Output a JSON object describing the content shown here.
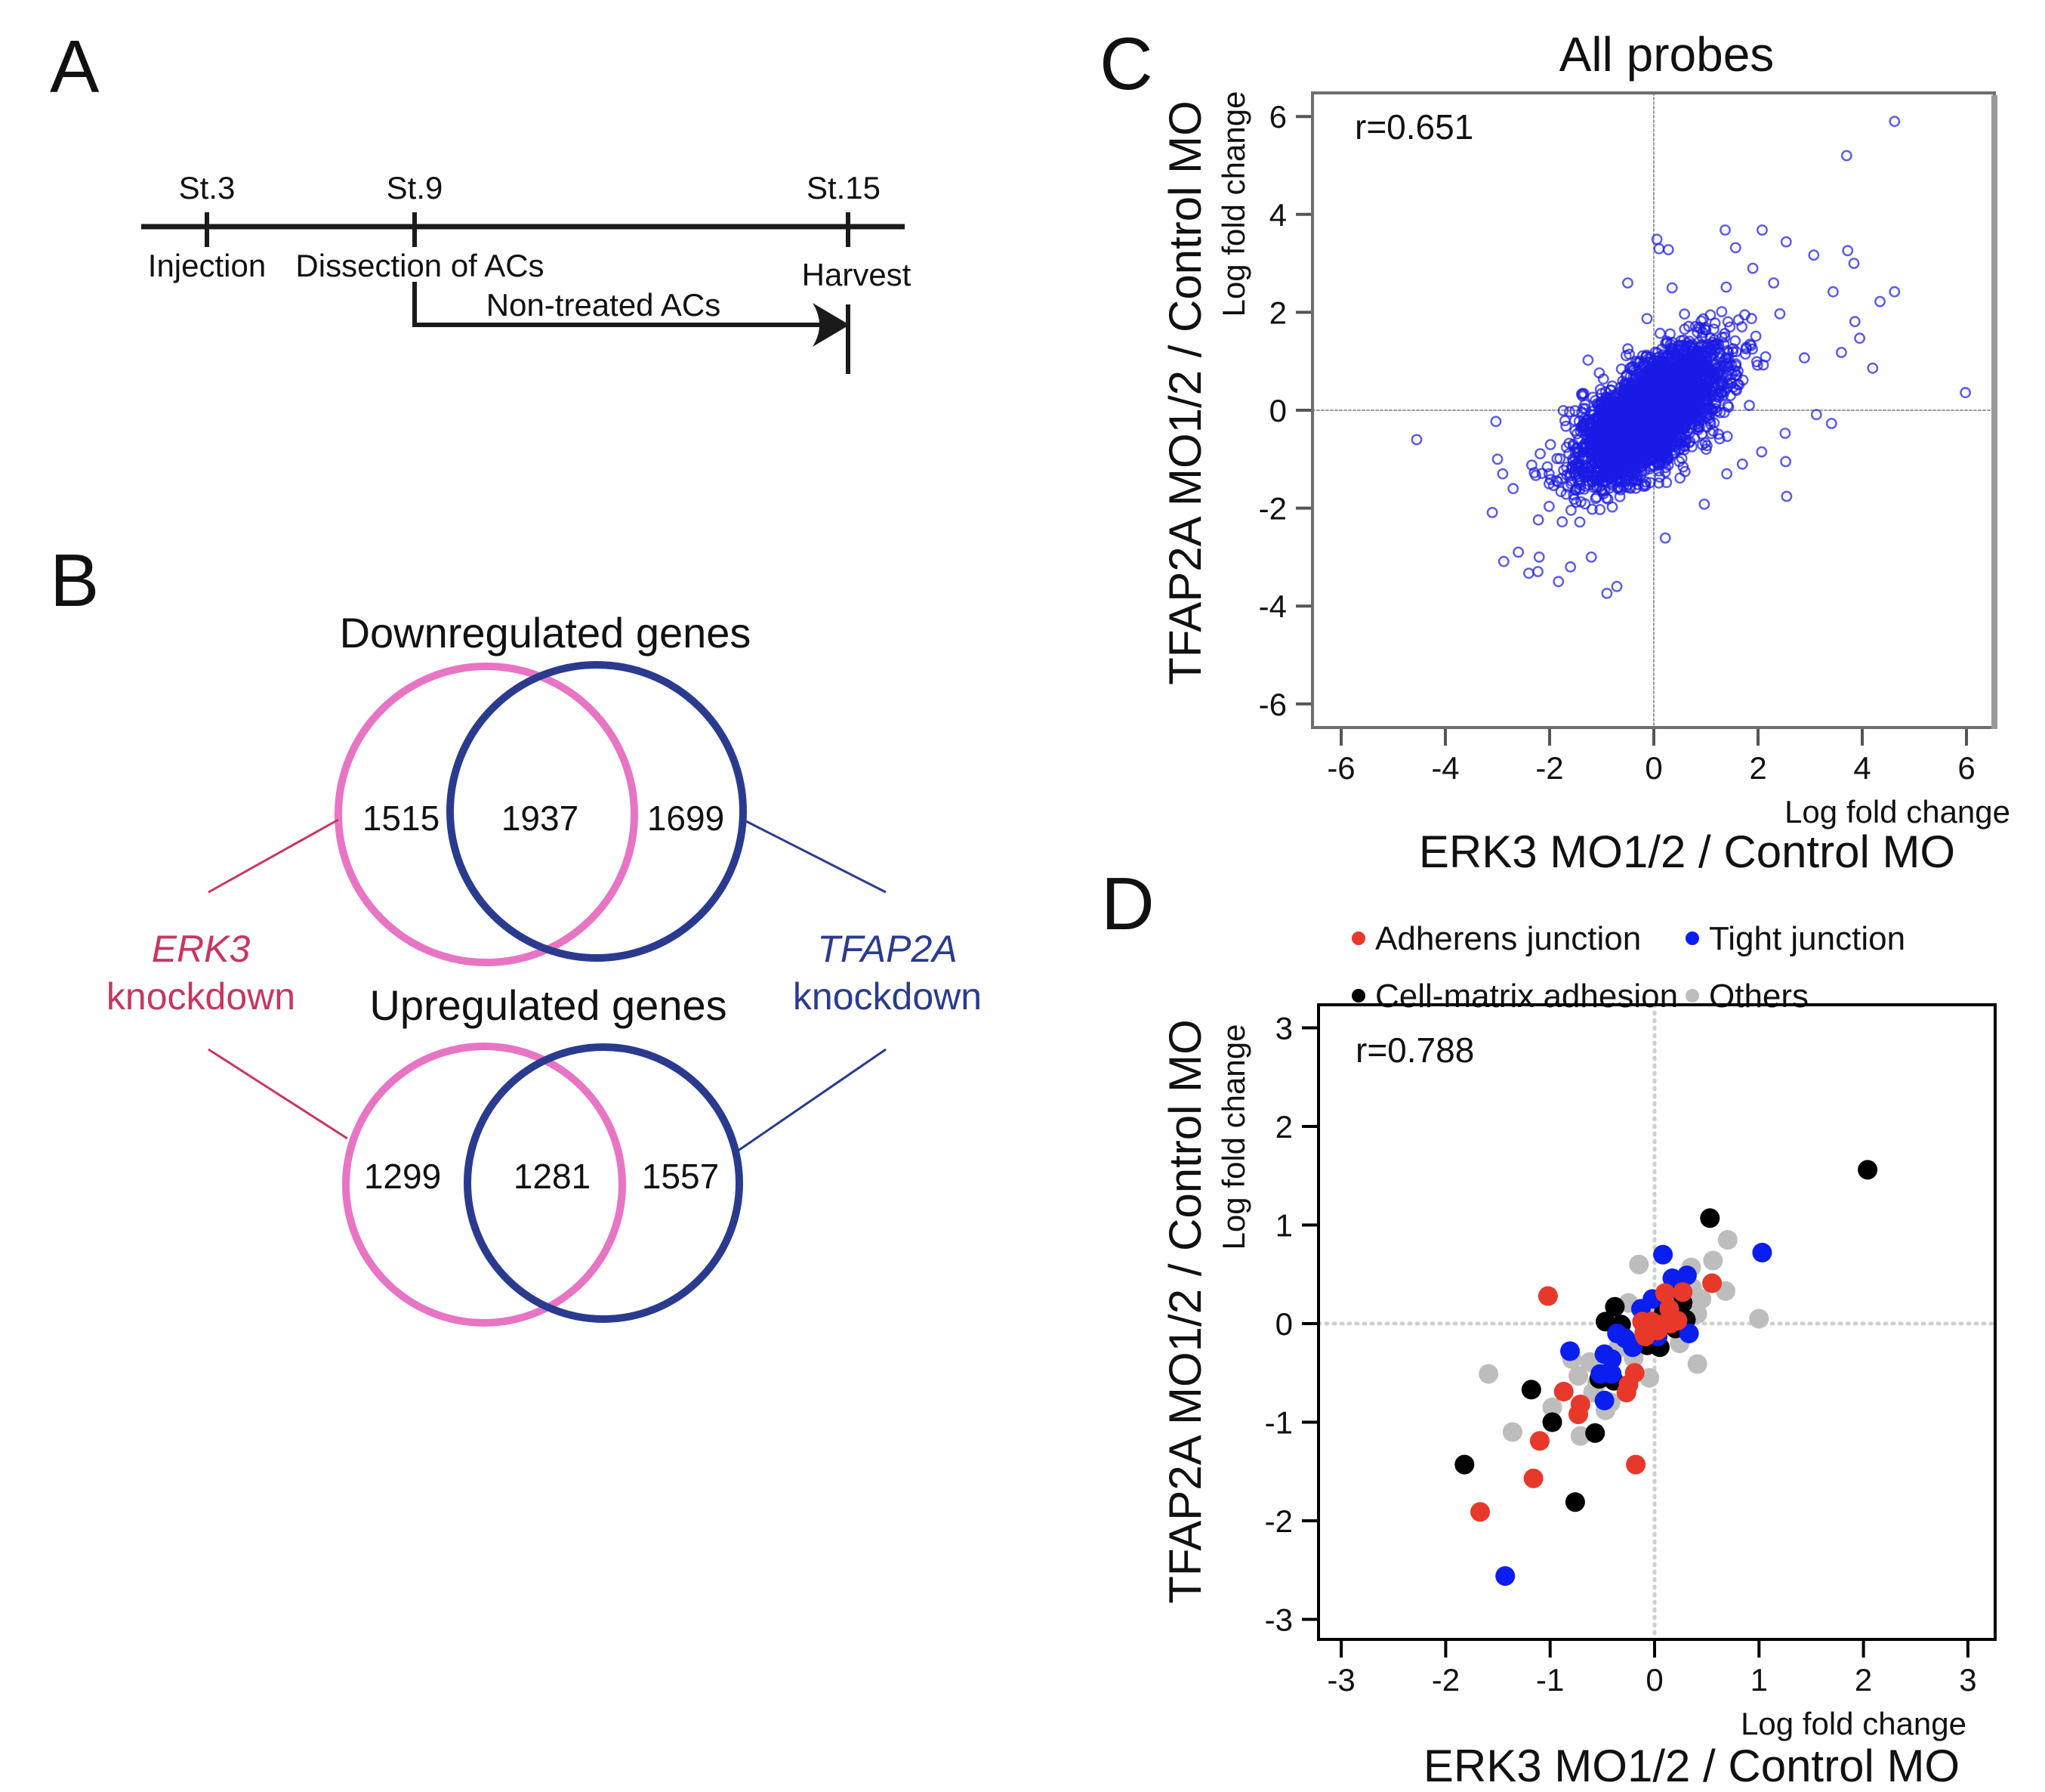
{
  "panel_labels": {
    "a": "A",
    "b": "B",
    "c": "C",
    "d": "D"
  },
  "timeline": {
    "stages": [
      {
        "label": "St.3",
        "event": "Injection"
      },
      {
        "label": "St.9",
        "event": "Dissection of ACs"
      },
      {
        "label": "St.15",
        "event": "Harvest"
      }
    ],
    "arrow_label": "Non-treated ACs"
  },
  "venn": {
    "colors": {
      "erk3": "#e874c4",
      "tfap2a": "#2a3b8f",
      "erk3_text": "#c8365f",
      "tfap2a_text": "#2a3b8f"
    },
    "down": {
      "title": "Downregulated genes",
      "erk3_only": "1515",
      "both": "1937",
      "tfap2a_only": "1699"
    },
    "up": {
      "title": "Upregulated genes",
      "erk3_only": "1299",
      "both": "1281",
      "tfap2a_only": "1557"
    },
    "erk3_label": {
      "gene": "ERK3",
      "word": "knockdown"
    },
    "tfap2a_label": {
      "gene": "TFAP2A",
      "word": "knockdown"
    }
  },
  "chart_data": [
    {
      "id": "C",
      "type": "scatter",
      "title": "All probes",
      "annotation": "r=0.651",
      "xlabel": "ERK3 MO1/2 / Control MO",
      "xlabel_small": "Log fold change",
      "ylabel": "TFAP2A MO1/2 / Control MO",
      "ylabel_small": "Log fold change",
      "xlim": [
        -6.5,
        6.5
      ],
      "ylim": [
        -6.5,
        6.5
      ],
      "xticks": [
        -6,
        -4,
        -2,
        0,
        2,
        4,
        6
      ],
      "yticks": [
        -6,
        -4,
        -2,
        0,
        2,
        4,
        6
      ],
      "reference_lines": {
        "x": 0,
        "y": 0
      },
      "marker": "open-circle",
      "color": "#1a1ae6",
      "bulk_distribution": {
        "n": 3500,
        "mean_x": -0.1,
        "mean_y": -0.1,
        "sd_x": 0.68,
        "sd_y": 0.68,
        "r": 0.651,
        "seed": 7
      },
      "outliers": [
        [
          4.62,
          5.9
        ],
        [
          3.7,
          5.2
        ],
        [
          5.98,
          0.36
        ],
        [
          -4.55,
          -0.6
        ],
        [
          1.37,
          3.68
        ],
        [
          2.08,
          3.68
        ],
        [
          2.54,
          3.44
        ],
        [
          1.57,
          3.32
        ],
        [
          3.72,
          3.26
        ],
        [
          3.84,
          3.0
        ],
        [
          3.07,
          3.17
        ],
        [
          3.44,
          2.42
        ],
        [
          4.62,
          2.42
        ],
        [
          4.34,
          2.22
        ],
        [
          3.86,
          1.81
        ],
        [
          3.95,
          1.47
        ],
        [
          3.6,
          1.18
        ],
        [
          4.2,
          0.86
        ],
        [
          2.89,
          1.07
        ],
        [
          3.41,
          -0.27
        ],
        [
          3.12,
          -0.09
        ],
        [
          2.52,
          -0.47
        ],
        [
          2.53,
          -1.05
        ],
        [
          2.55,
          -1.76
        ],
        [
          2.07,
          -0.85
        ],
        [
          0.97,
          -1.92
        ],
        [
          0.22,
          -2.61
        ],
        [
          -0.9,
          -3.74
        ],
        [
          -0.71,
          -3.6
        ],
        [
          -1.83,
          -3.5
        ],
        [
          -2.88,
          -3.09
        ],
        [
          -2.4,
          -3.33
        ],
        [
          -3.1,
          -2.09
        ],
        [
          -3.03,
          -0.23
        ],
        [
          0.06,
          3.49
        ],
        [
          0.28,
          3.28
        ],
        [
          0.1,
          3.3
        ],
        [
          0.35,
          2.5
        ],
        [
          -0.5,
          2.6
        ],
        [
          1.9,
          2.9
        ],
        [
          2.3,
          2.6
        ],
        [
          -2.6,
          -2.9
        ],
        [
          -2.2,
          -3.0
        ],
        [
          -1.6,
          -3.2
        ],
        [
          -1.2,
          -3.0
        ],
        [
          -2.9,
          -1.3
        ],
        [
          -2.7,
          -1.6
        ],
        [
          -3.0,
          -1.0
        ],
        [
          1.4,
          -1.3
        ],
        [
          1.7,
          -1.1
        ]
      ]
    },
    {
      "id": "D",
      "type": "scatter",
      "annotation": "r=0.788",
      "xlabel": "ERK3 MO1/2 / Control MO",
      "xlabel_small": "Log fold change",
      "ylabel": "TFAP2A MO1/2 / Control MO",
      "ylabel_small": "Log fold change",
      "xlim": [
        -3.25,
        3.25
      ],
      "ylim": [
        -3.3,
        3.3
      ],
      "xticks": [
        -3,
        -2,
        -1,
        0,
        1,
        2,
        3
      ],
      "yticks": [
        -3,
        -2,
        -1,
        0,
        1,
        2,
        3
      ],
      "reference_lines": {
        "x": 0,
        "y": 0
      },
      "legend_position": "top",
      "series": [
        {
          "name": "Others",
          "color": "#bdbdbd",
          "points": [
            [
              0.7,
              0.85
            ],
            [
              0.56,
              0.64
            ],
            [
              0.35,
              0.57
            ],
            [
              0.68,
              0.33
            ],
            [
              -0.15,
              0.6
            ],
            [
              1.0,
              0.05
            ],
            [
              0.41,
              -0.41
            ],
            [
              0.24,
              -0.2
            ],
            [
              0.41,
              0.1
            ],
            [
              -0.25,
              0.21
            ],
            [
              -0.05,
              -0.55
            ],
            [
              -0.62,
              -0.39
            ],
            [
              -0.79,
              -0.36
            ],
            [
              -0.73,
              -0.53
            ],
            [
              -1.59,
              -0.51
            ],
            [
              -0.98,
              -0.85
            ],
            [
              -0.47,
              -0.88
            ],
            [
              -1.36,
              -1.1
            ],
            [
              -0.71,
              -1.14
            ],
            [
              -0.42,
              -0.8
            ],
            [
              -0.59,
              -0.7
            ],
            [
              0.36,
              0.36
            ],
            [
              0.12,
              0.3
            ],
            [
              0.3,
              0.45
            ],
            [
              -0.35,
              -0.25
            ],
            [
              0.05,
              0.1
            ],
            [
              -0.2,
              -0.35
            ],
            [
              0.2,
              0.05
            ],
            [
              -0.55,
              -0.6
            ],
            [
              0.45,
              0.25
            ]
          ]
        },
        {
          "name": "Cell-matrix adhesion",
          "color": "#000000",
          "points": [
            [
              2.04,
              1.56
            ],
            [
              0.53,
              1.07
            ],
            [
              -0.38,
              0.17
            ],
            [
              -0.47,
              0.02
            ],
            [
              -0.32,
              -0.01
            ],
            [
              0.27,
              0.21
            ],
            [
              0.3,
              0.04
            ],
            [
              0.05,
              -0.24
            ],
            [
              -0.07,
              -0.22
            ],
            [
              -0.53,
              -0.56
            ],
            [
              -0.39,
              -0.58
            ],
            [
              -1.18,
              -0.67
            ],
            [
              -0.98,
              -1.0
            ],
            [
              -0.57,
              -1.11
            ],
            [
              -1.82,
              -1.43
            ],
            [
              -0.76,
              -1.81
            ],
            [
              0.09,
              0.12
            ],
            [
              0.2,
              -0.05
            ]
          ]
        },
        {
          "name": "Tight junction",
          "color": "#0a1ef0",
          "points": [
            [
              0.08,
              0.7
            ],
            [
              1.03,
              0.72
            ],
            [
              0.17,
              0.46
            ],
            [
              0.31,
              0.49
            ],
            [
              -0.02,
              0.25
            ],
            [
              -0.13,
              0.15
            ],
            [
              0.33,
              -0.1
            ],
            [
              -0.36,
              -0.1
            ],
            [
              -0.28,
              -0.15
            ],
            [
              -0.21,
              -0.24
            ],
            [
              -0.81,
              -0.28
            ],
            [
              -0.48,
              -0.31
            ],
            [
              -0.41,
              -0.36
            ],
            [
              -0.52,
              -0.51
            ],
            [
              -0.41,
              -0.51
            ],
            [
              -0.48,
              -0.78
            ],
            [
              -1.43,
              -2.56
            ],
            [
              0.03,
              -0.13
            ],
            [
              0.2,
              0.35
            ],
            [
              -0.05,
              -0.05
            ]
          ]
        },
        {
          "name": "Adherens junction",
          "color": "#e8382a",
          "points": [
            [
              -1.02,
              0.28
            ],
            [
              0.55,
              0.41
            ],
            [
              0.1,
              0.31
            ],
            [
              0.27,
              0.32
            ],
            [
              0.14,
              0.15
            ],
            [
              -0.12,
              0.02
            ],
            [
              -0.03,
              0.02
            ],
            [
              0.06,
              -0.01
            ],
            [
              0.15,
              0.0
            ],
            [
              -0.09,
              -0.13
            ],
            [
              0.03,
              -0.07
            ],
            [
              -0.19,
              -0.5
            ],
            [
              -0.25,
              -0.62
            ],
            [
              -0.27,
              -0.7
            ],
            [
              -0.87,
              -0.69
            ],
            [
              -0.71,
              -0.82
            ],
            [
              -0.73,
              -0.92
            ],
            [
              -1.1,
              -1.19
            ],
            [
              -0.18,
              -1.43
            ],
            [
              -1.16,
              -1.57
            ],
            [
              -1.67,
              -1.91
            ],
            [
              0.22,
              0.03
            ],
            [
              -0.1,
              -0.1
            ]
          ]
        }
      ],
      "legend_order": [
        "Adherens junction",
        "Tight junction",
        "Cell-matrix adhesion",
        "Others"
      ]
    }
  ]
}
